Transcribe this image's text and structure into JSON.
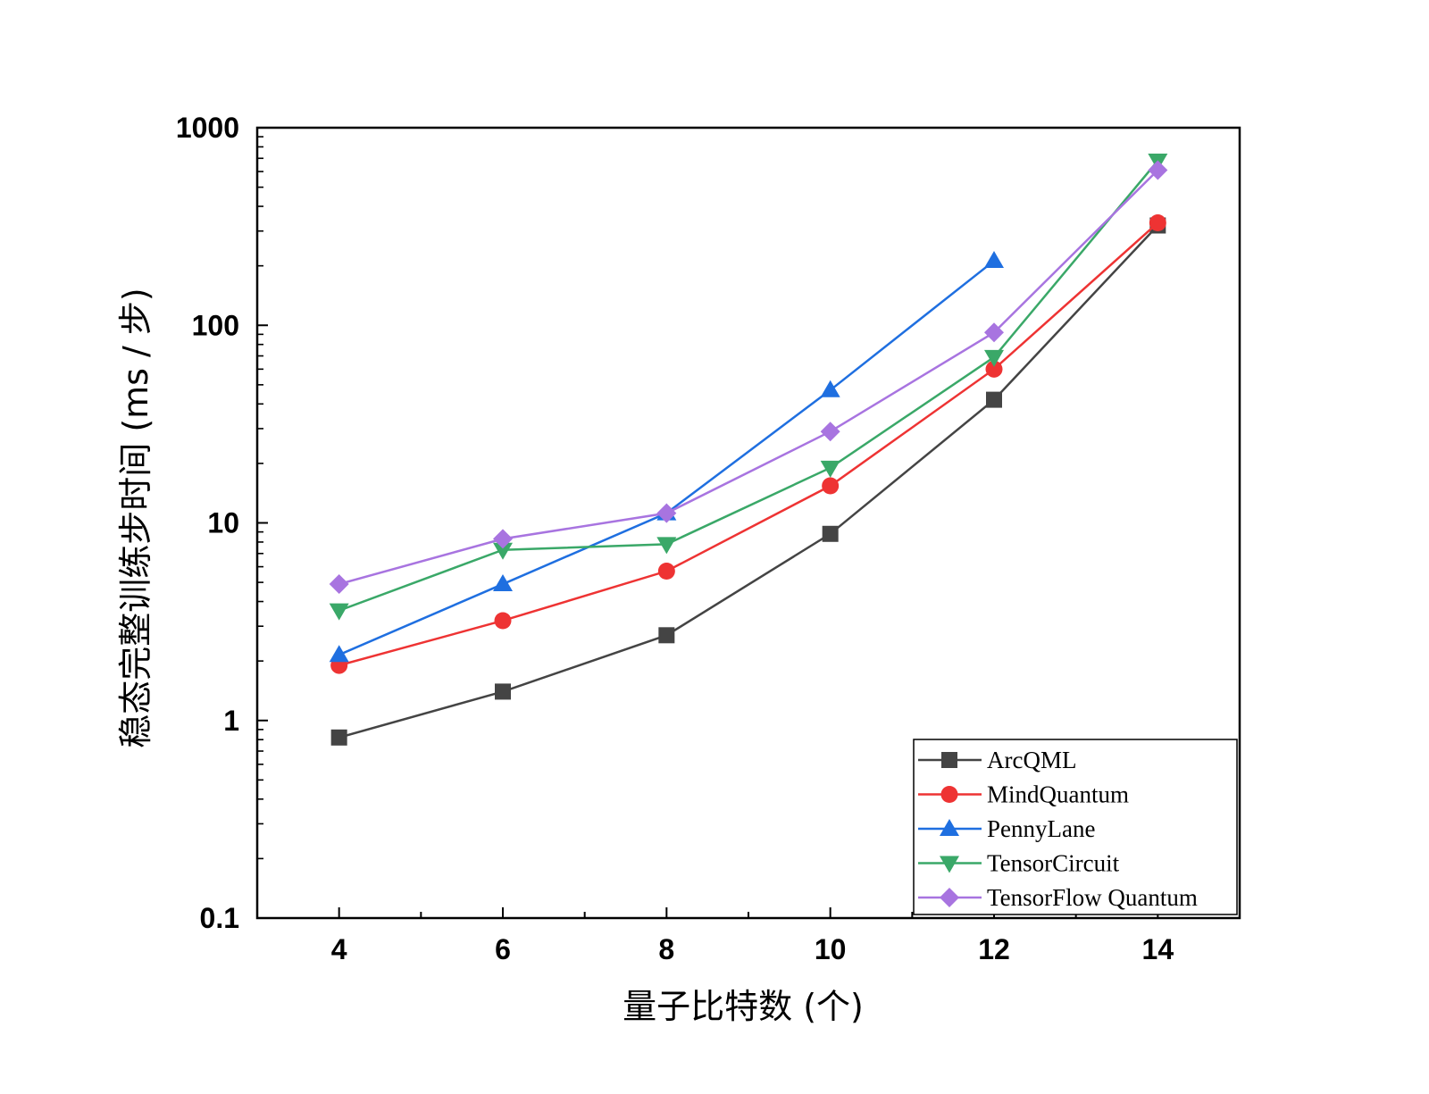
{
  "chart_data": {
    "type": "line",
    "xlabel": "量子比特数 (个)",
    "ylabel": "稳态完整训练步时间 (ms / 步)",
    "yscale": "log",
    "xlim": [
      3,
      15
    ],
    "ylim": [
      0.1,
      1000
    ],
    "x_ticks": [
      4,
      6,
      8,
      10,
      12,
      14
    ],
    "y_ticks": [
      0.1,
      1,
      10,
      100,
      1000
    ],
    "y_tick_labels": [
      "0.1",
      "1",
      "10",
      "100",
      "1000"
    ],
    "grid": false,
    "legend_position": "bottom-right",
    "series": [
      {
        "name": "ArcQML",
        "color": "#444444",
        "marker": "square",
        "x": [
          4,
          6,
          8,
          10,
          12,
          14
        ],
        "y": [
          0.82,
          1.4,
          2.7,
          8.8,
          42,
          320
        ]
      },
      {
        "name": "MindQuantum",
        "color": "#ee3333",
        "marker": "circle",
        "x": [
          4,
          6,
          8,
          10,
          12,
          14
        ],
        "y": [
          1.9,
          3.2,
          5.7,
          15.4,
          60,
          330
        ]
      },
      {
        "name": "PennyLane",
        "color": "#1f6fe0",
        "marker": "triangle-up",
        "x": [
          4,
          6,
          8,
          10,
          12
        ],
        "y": [
          2.15,
          4.9,
          11.2,
          47,
          212
        ]
      },
      {
        "name": "TensorCircuit",
        "color": "#3aa868",
        "marker": "triangle-down",
        "x": [
          4,
          6,
          8,
          10,
          12,
          14
        ],
        "y": [
          3.6,
          7.3,
          7.8,
          19,
          69,
          680
        ]
      },
      {
        "name": "TensorFlow Quantum",
        "color": "#a874e0",
        "marker": "diamond",
        "x": [
          4,
          6,
          8,
          10,
          12,
          14
        ],
        "y": [
          4.9,
          8.3,
          11.2,
          29,
          92,
          610
        ]
      }
    ]
  }
}
